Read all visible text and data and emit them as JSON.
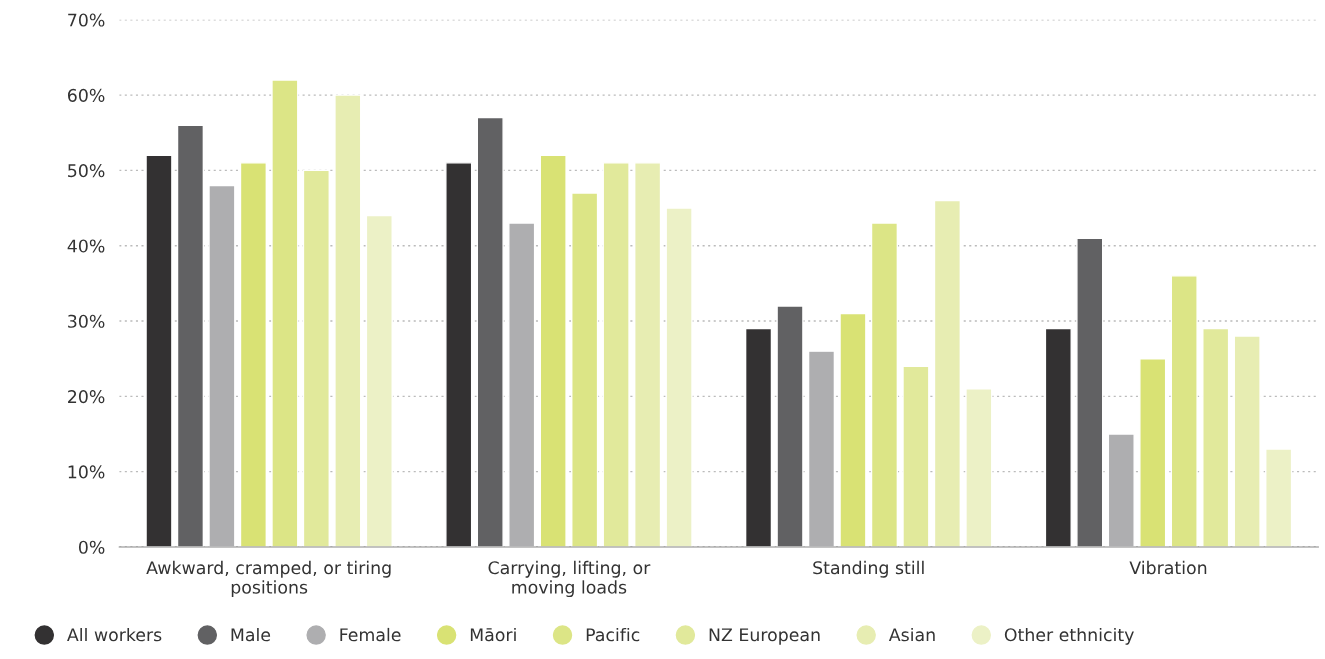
{
  "chart_data": {
    "type": "bar",
    "categories": [
      "Awkward, cramped, or tiring\npositions",
      "Carrying, lifting, or\nmoving loads",
      "Standing still",
      "Vibration"
    ],
    "series": [
      {
        "name": "All workers",
        "color": "#333132",
        "values": [
          52,
          51,
          29,
          29
        ]
      },
      {
        "name": "Male",
        "color": "#616163",
        "values": [
          56,
          57,
          32,
          41
        ]
      },
      {
        "name": "Female",
        "color": "#aeaeb0",
        "values": [
          48,
          43,
          26,
          15
        ]
      },
      {
        "name": "Māori",
        "color": "#d9e274",
        "values": [
          51,
          52,
          31,
          25
        ]
      },
      {
        "name": "Pacific",
        "color": "#dce586",
        "values": [
          62,
          47,
          43,
          36
        ]
      },
      {
        "name": "NZ European",
        "color": "#e1e99b",
        "values": [
          50,
          51,
          24,
          29
        ]
      },
      {
        "name": "Asian",
        "color": "#e7edb2",
        "values": [
          60,
          51,
          46,
          28
        ]
      },
      {
        "name": "Other ethnicity",
        "color": "#ecf1c6",
        "values": [
          44,
          45,
          21,
          13
        ]
      }
    ],
    "ylim": [
      0,
      70
    ],
    "yticks": [
      {
        "value": 0,
        "label": "0%"
      },
      {
        "value": 10,
        "label": "10%"
      },
      {
        "value": 20,
        "label": "20%"
      },
      {
        "value": 30,
        "label": "30%"
      },
      {
        "value": 40,
        "label": "40%"
      },
      {
        "value": 50,
        "label": "50%"
      },
      {
        "value": 60,
        "label": "60%"
      },
      {
        "value": 70,
        "label": "70%"
      }
    ],
    "grid": "y",
    "legend": "bottom",
    "marker": "circle"
  }
}
